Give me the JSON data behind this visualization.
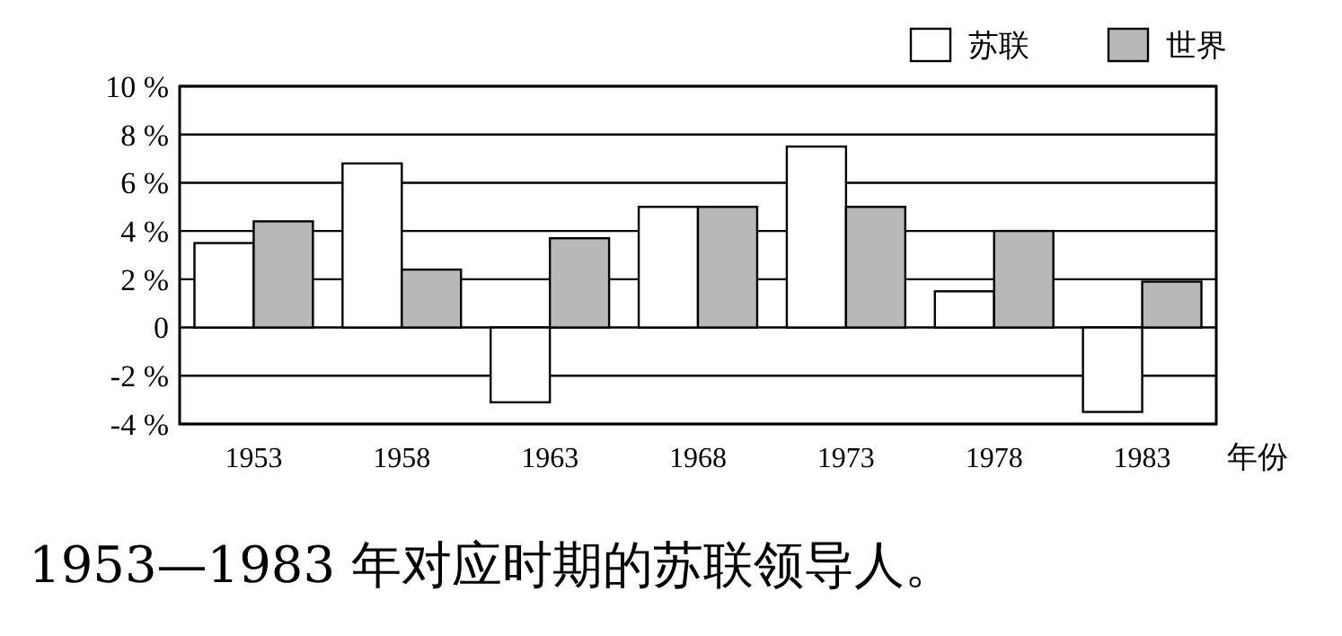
{
  "chart_data": {
    "type": "bar",
    "categories": [
      "1953",
      "1958",
      "1963",
      "1968",
      "1973",
      "1978",
      "1983"
    ],
    "xlabel": "年份",
    "series": [
      {
        "name": "苏联",
        "color": "#ffffff",
        "values": [
          3.5,
          6.8,
          -3.1,
          5.0,
          7.5,
          1.5,
          -3.5
        ]
      },
      {
        "name": "世界",
        "color": "#b8b8b8",
        "values": [
          4.4,
          2.4,
          3.7,
          5.0,
          5.0,
          4.0,
          1.9
        ]
      }
    ],
    "ylim": [
      -4,
      10
    ],
    "yticks": [
      {
        "value": -4,
        "label": "-4 %"
      },
      {
        "value": -2,
        "label": "-2 %"
      },
      {
        "value": 0,
        "label": "0"
      },
      {
        "value": 2,
        "label": "2 %"
      },
      {
        "value": 4,
        "label": "4 %"
      },
      {
        "value": 6,
        "label": "6 %"
      },
      {
        "value": 8,
        "label": "8 %"
      },
      {
        "value": 10,
        "label": "10 %"
      }
    ],
    "grid": "y",
    "legend": "top right",
    "annotations": [
      "1953—1983 年对应时期的苏联领导人。"
    ]
  }
}
